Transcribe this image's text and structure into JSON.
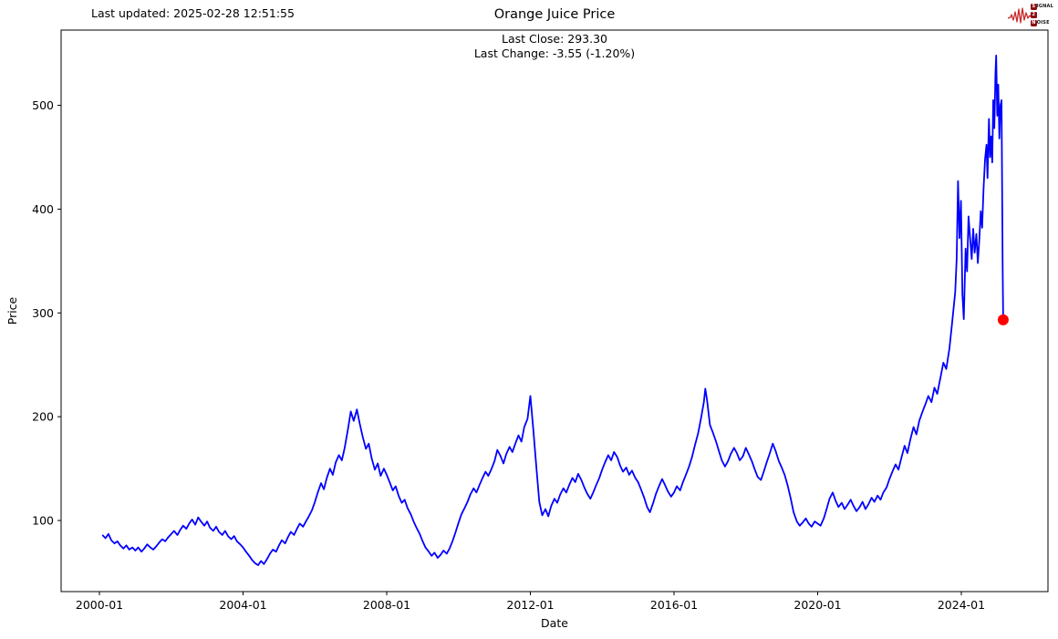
{
  "header": {
    "last_updated": "Last updated: 2025-02-28 12:51:55"
  },
  "logo": {
    "rows": [
      {
        "badge": "S",
        "rest": "IGNAL"
      },
      {
        "badge": "2",
        "rest": ""
      },
      {
        "badge": "N",
        "rest": "OISE"
      }
    ],
    "zigzag_color": "#c92a2a",
    "badge_color": "#8b1010"
  },
  "chart_data": {
    "type": "line",
    "title": "Orange Juice Price",
    "annotations": [
      "Last Close: 293.30",
      "Last Change: -3.55 (-1.20%)"
    ],
    "xlabel": "Date",
    "ylabel": "Price",
    "last_close": 293.3,
    "last_change": "-3.55 (-1.20%)",
    "line_color": "#0000ff",
    "marker": {
      "x": 2025.165,
      "y": 293.3,
      "color": "#ff0000"
    },
    "xlim": [
      1998.933,
      2026.413
    ],
    "ylim": [
      31.5,
      572.5
    ],
    "grid": false,
    "x_ticks": [
      {
        "value": 2000,
        "label": "2000-01"
      },
      {
        "value": 2004,
        "label": "2004-01"
      },
      {
        "value": 2008,
        "label": "2008-01"
      },
      {
        "value": 2012,
        "label": "2012-01"
      },
      {
        "value": 2016,
        "label": "2016-01"
      },
      {
        "value": 2020,
        "label": "2020-01"
      },
      {
        "value": 2024,
        "label": "2024-01"
      }
    ],
    "y_ticks": [
      {
        "value": 100,
        "label": "100"
      },
      {
        "value": 200,
        "label": "200"
      },
      {
        "value": 300,
        "label": "300"
      },
      {
        "value": 400,
        "label": "400"
      },
      {
        "value": 500,
        "label": "500"
      }
    ],
    "points": [
      [
        2000.08,
        86
      ],
      [
        2000.17,
        83
      ],
      [
        2000.25,
        87
      ],
      [
        2000.33,
        81
      ],
      [
        2000.42,
        78
      ],
      [
        2000.5,
        80
      ],
      [
        2000.58,
        76
      ],
      [
        2000.67,
        73
      ],
      [
        2000.75,
        76
      ],
      [
        2000.83,
        72
      ],
      [
        2000.92,
        74
      ],
      [
        2001.0,
        71
      ],
      [
        2001.08,
        74
      ],
      [
        2001.17,
        70
      ],
      [
        2001.25,
        73
      ],
      [
        2001.33,
        77
      ],
      [
        2001.42,
        74
      ],
      [
        2001.5,
        72
      ],
      [
        2001.58,
        75
      ],
      [
        2001.67,
        79
      ],
      [
        2001.75,
        82
      ],
      [
        2001.83,
        80
      ],
      [
        2001.92,
        84
      ],
      [
        2002.0,
        87
      ],
      [
        2002.08,
        90
      ],
      [
        2002.17,
        86
      ],
      [
        2002.25,
        91
      ],
      [
        2002.33,
        95
      ],
      [
        2002.42,
        92
      ],
      [
        2002.5,
        97
      ],
      [
        2002.58,
        101
      ],
      [
        2002.67,
        96
      ],
      [
        2002.75,
        103
      ],
      [
        2002.83,
        99
      ],
      [
        2002.92,
        95
      ],
      [
        2003.0,
        99
      ],
      [
        2003.08,
        93
      ],
      [
        2003.17,
        90
      ],
      [
        2003.25,
        94
      ],
      [
        2003.33,
        89
      ],
      [
        2003.42,
        86
      ],
      [
        2003.5,
        90
      ],
      [
        2003.58,
        85
      ],
      [
        2003.67,
        82
      ],
      [
        2003.75,
        85
      ],
      [
        2003.83,
        80
      ],
      [
        2003.92,
        77
      ],
      [
        2004.0,
        74
      ],
      [
        2004.08,
        70
      ],
      [
        2004.17,
        66
      ],
      [
        2004.25,
        62
      ],
      [
        2004.33,
        59
      ],
      [
        2004.42,
        57
      ],
      [
        2004.5,
        61
      ],
      [
        2004.58,
        58
      ],
      [
        2004.67,
        63
      ],
      [
        2004.75,
        68
      ],
      [
        2004.83,
        72
      ],
      [
        2004.92,
        70
      ],
      [
        2005.0,
        76
      ],
      [
        2005.08,
        81
      ],
      [
        2005.17,
        78
      ],
      [
        2005.25,
        84
      ],
      [
        2005.33,
        89
      ],
      [
        2005.42,
        86
      ],
      [
        2005.5,
        92
      ],
      [
        2005.58,
        97
      ],
      [
        2005.67,
        94
      ],
      [
        2005.75,
        99
      ],
      [
        2005.83,
        104
      ],
      [
        2005.92,
        110
      ],
      [
        2006.0,
        118
      ],
      [
        2006.08,
        127
      ],
      [
        2006.17,
        136
      ],
      [
        2006.25,
        130
      ],
      [
        2006.33,
        141
      ],
      [
        2006.42,
        150
      ],
      [
        2006.5,
        144
      ],
      [
        2006.58,
        156
      ],
      [
        2006.67,
        163
      ],
      [
        2006.75,
        158
      ],
      [
        2006.83,
        170
      ],
      [
        2006.92,
        188
      ],
      [
        2007.0,
        205
      ],
      [
        2007.08,
        196
      ],
      [
        2007.17,
        207
      ],
      [
        2007.25,
        193
      ],
      [
        2007.33,
        181
      ],
      [
        2007.42,
        169
      ],
      [
        2007.5,
        174
      ],
      [
        2007.58,
        160
      ],
      [
        2007.67,
        149
      ],
      [
        2007.75,
        155
      ],
      [
        2007.83,
        143
      ],
      [
        2007.92,
        150
      ],
      [
        2008.0,
        144
      ],
      [
        2008.08,
        137
      ],
      [
        2008.17,
        129
      ],
      [
        2008.25,
        133
      ],
      [
        2008.33,
        124
      ],
      [
        2008.42,
        117
      ],
      [
        2008.5,
        120
      ],
      [
        2008.58,
        112
      ],
      [
        2008.67,
        106
      ],
      [
        2008.75,
        99
      ],
      [
        2008.83,
        93
      ],
      [
        2008.92,
        87
      ],
      [
        2009.0,
        80
      ],
      [
        2009.08,
        74
      ],
      [
        2009.17,
        70
      ],
      [
        2009.25,
        66
      ],
      [
        2009.33,
        69
      ],
      [
        2009.42,
        64
      ],
      [
        2009.5,
        67
      ],
      [
        2009.58,
        71
      ],
      [
        2009.67,
        68
      ],
      [
        2009.75,
        73
      ],
      [
        2009.83,
        80
      ],
      [
        2009.92,
        89
      ],
      [
        2010.0,
        98
      ],
      [
        2010.08,
        106
      ],
      [
        2010.17,
        112
      ],
      [
        2010.25,
        118
      ],
      [
        2010.33,
        125
      ],
      [
        2010.42,
        131
      ],
      [
        2010.5,
        127
      ],
      [
        2010.58,
        134
      ],
      [
        2010.67,
        141
      ],
      [
        2010.75,
        147
      ],
      [
        2010.83,
        143
      ],
      [
        2010.92,
        150
      ],
      [
        2011.0,
        157
      ],
      [
        2011.08,
        168
      ],
      [
        2011.17,
        162
      ],
      [
        2011.25,
        155
      ],
      [
        2011.33,
        164
      ],
      [
        2011.42,
        171
      ],
      [
        2011.5,
        166
      ],
      [
        2011.58,
        174
      ],
      [
        2011.67,
        182
      ],
      [
        2011.75,
        176
      ],
      [
        2011.83,
        190
      ],
      [
        2011.92,
        198
      ],
      [
        2012.0,
        220
      ],
      [
        2012.08,
        188
      ],
      [
        2012.17,
        150
      ],
      [
        2012.25,
        118
      ],
      [
        2012.33,
        105
      ],
      [
        2012.42,
        111
      ],
      [
        2012.5,
        104
      ],
      [
        2012.58,
        114
      ],
      [
        2012.67,
        121
      ],
      [
        2012.75,
        117
      ],
      [
        2012.83,
        125
      ],
      [
        2012.92,
        131
      ],
      [
        2013.0,
        127
      ],
      [
        2013.08,
        134
      ],
      [
        2013.17,
        141
      ],
      [
        2013.25,
        137
      ],
      [
        2013.33,
        145
      ],
      [
        2013.42,
        139
      ],
      [
        2013.5,
        132
      ],
      [
        2013.58,
        126
      ],
      [
        2013.67,
        121
      ],
      [
        2013.75,
        127
      ],
      [
        2013.83,
        134
      ],
      [
        2013.92,
        141
      ],
      [
        2014.0,
        149
      ],
      [
        2014.08,
        156
      ],
      [
        2014.17,
        163
      ],
      [
        2014.25,
        158
      ],
      [
        2014.33,
        166
      ],
      [
        2014.42,
        161
      ],
      [
        2014.5,
        153
      ],
      [
        2014.58,
        147
      ],
      [
        2014.67,
        151
      ],
      [
        2014.75,
        144
      ],
      [
        2014.83,
        148
      ],
      [
        2014.92,
        141
      ],
      [
        2015.0,
        137
      ],
      [
        2015.08,
        130
      ],
      [
        2015.17,
        122
      ],
      [
        2015.25,
        113
      ],
      [
        2015.33,
        108
      ],
      [
        2015.42,
        117
      ],
      [
        2015.5,
        126
      ],
      [
        2015.58,
        133
      ],
      [
        2015.67,
        140
      ],
      [
        2015.75,
        134
      ],
      [
        2015.83,
        128
      ],
      [
        2015.92,
        123
      ],
      [
        2016.0,
        127
      ],
      [
        2016.08,
        133
      ],
      [
        2016.17,
        129
      ],
      [
        2016.25,
        137
      ],
      [
        2016.33,
        144
      ],
      [
        2016.42,
        152
      ],
      [
        2016.5,
        161
      ],
      [
        2016.58,
        172
      ],
      [
        2016.67,
        184
      ],
      [
        2016.75,
        198
      ],
      [
        2016.83,
        214
      ],
      [
        2016.87,
        227
      ],
      [
        2016.92,
        216
      ],
      [
        2017.0,
        192
      ],
      [
        2017.08,
        185
      ],
      [
        2017.17,
        176
      ],
      [
        2017.25,
        167
      ],
      [
        2017.33,
        158
      ],
      [
        2017.42,
        152
      ],
      [
        2017.5,
        157
      ],
      [
        2017.58,
        164
      ],
      [
        2017.67,
        170
      ],
      [
        2017.75,
        165
      ],
      [
        2017.83,
        158
      ],
      [
        2017.92,
        162
      ],
      [
        2018.0,
        170
      ],
      [
        2018.08,
        164
      ],
      [
        2018.17,
        157
      ],
      [
        2018.25,
        149
      ],
      [
        2018.33,
        142
      ],
      [
        2018.42,
        139
      ],
      [
        2018.5,
        147
      ],
      [
        2018.58,
        156
      ],
      [
        2018.67,
        165
      ],
      [
        2018.75,
        174
      ],
      [
        2018.83,
        167
      ],
      [
        2018.92,
        157
      ],
      [
        2019.0,
        151
      ],
      [
        2019.08,
        144
      ],
      [
        2019.17,
        133
      ],
      [
        2019.25,
        121
      ],
      [
        2019.33,
        108
      ],
      [
        2019.42,
        99
      ],
      [
        2019.5,
        95
      ],
      [
        2019.58,
        98
      ],
      [
        2019.67,
        102
      ],
      [
        2019.75,
        97
      ],
      [
        2019.83,
        94
      ],
      [
        2019.92,
        99
      ],
      [
        2020.0,
        97
      ],
      [
        2020.08,
        95
      ],
      [
        2020.17,
        102
      ],
      [
        2020.25,
        111
      ],
      [
        2020.33,
        121
      ],
      [
        2020.42,
        127
      ],
      [
        2020.5,
        119
      ],
      [
        2020.58,
        113
      ],
      [
        2020.67,
        117
      ],
      [
        2020.75,
        111
      ],
      [
        2020.83,
        115
      ],
      [
        2020.92,
        120
      ],
      [
        2021.0,
        114
      ],
      [
        2021.08,
        109
      ],
      [
        2021.17,
        113
      ],
      [
        2021.25,
        118
      ],
      [
        2021.33,
        111
      ],
      [
        2021.42,
        116
      ],
      [
        2021.5,
        122
      ],
      [
        2021.58,
        118
      ],
      [
        2021.67,
        124
      ],
      [
        2021.75,
        120
      ],
      [
        2021.83,
        127
      ],
      [
        2021.92,
        132
      ],
      [
        2022.0,
        140
      ],
      [
        2022.08,
        147
      ],
      [
        2022.17,
        154
      ],
      [
        2022.25,
        149
      ],
      [
        2022.33,
        160
      ],
      [
        2022.42,
        172
      ],
      [
        2022.5,
        165
      ],
      [
        2022.58,
        178
      ],
      [
        2022.67,
        190
      ],
      [
        2022.75,
        183
      ],
      [
        2022.83,
        196
      ],
      [
        2022.92,
        205
      ],
      [
        2023.0,
        212
      ],
      [
        2023.08,
        220
      ],
      [
        2023.17,
        214
      ],
      [
        2023.25,
        228
      ],
      [
        2023.33,
        222
      ],
      [
        2023.42,
        238
      ],
      [
        2023.5,
        252
      ],
      [
        2023.58,
        246
      ],
      [
        2023.67,
        266
      ],
      [
        2023.75,
        292
      ],
      [
        2023.83,
        320
      ],
      [
        2023.87,
        352
      ],
      [
        2023.91,
        427
      ],
      [
        2023.95,
        372
      ],
      [
        2023.99,
        408
      ],
      [
        2024.03,
        318
      ],
      [
        2024.07,
        294
      ],
      [
        2024.12,
        362
      ],
      [
        2024.16,
        340
      ],
      [
        2024.2,
        393
      ],
      [
        2024.25,
        370
      ],
      [
        2024.29,
        352
      ],
      [
        2024.33,
        381
      ],
      [
        2024.37,
        358
      ],
      [
        2024.42,
        376
      ],
      [
        2024.46,
        348
      ],
      [
        2024.5,
        370
      ],
      [
        2024.54,
        398
      ],
      [
        2024.58,
        382
      ],
      [
        2024.62,
        420
      ],
      [
        2024.66,
        448
      ],
      [
        2024.7,
        462
      ],
      [
        2024.73,
        430
      ],
      [
        2024.77,
        487
      ],
      [
        2024.8,
        450
      ],
      [
        2024.83,
        470
      ],
      [
        2024.86,
        445
      ],
      [
        2024.89,
        505
      ],
      [
        2024.92,
        478
      ],
      [
        2024.95,
        530
      ],
      [
        2024.97,
        548
      ],
      [
        2025.0,
        490
      ],
      [
        2025.03,
        520
      ],
      [
        2025.06,
        468
      ],
      [
        2025.09,
        500
      ],
      [
        2025.12,
        505
      ],
      [
        2025.15,
        347
      ],
      [
        2025.165,
        293.3
      ]
    ]
  }
}
